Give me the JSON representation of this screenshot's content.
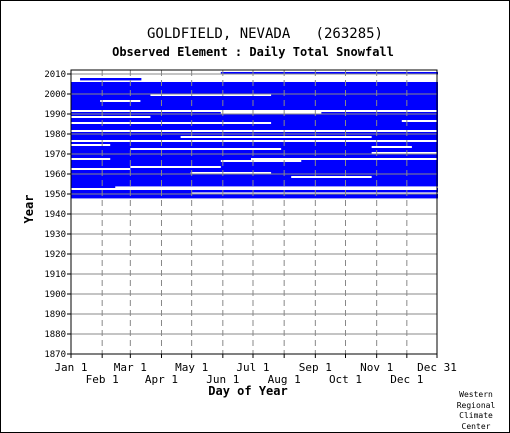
{
  "chart_data": {
    "type": "heatmap",
    "title": "GOLDFIELD, NEVADA   (263285)",
    "subtitle": "Observed Element : Daily Total Snowfall",
    "xlabel": "Day of Year",
    "ylabel": "Year",
    "xlim": [
      1,
      365
    ],
    "ylim": [
      1870,
      2012
    ],
    "x_ticks_top": [
      {
        "label": "Jan 1",
        "day": 1
      },
      {
        "label": "Mar 1",
        "day": 60
      },
      {
        "label": "May 1",
        "day": 121
      },
      {
        "label": "Jul 1",
        "day": 182
      },
      {
        "label": "Sep 1",
        "day": 244
      },
      {
        "label": "Nov 1",
        "day": 305
      },
      {
        "label": "Dec 31",
        "day": 365
      }
    ],
    "x_ticks_bottom": [
      {
        "label": "Feb 1",
        "day": 32
      },
      {
        "label": "Apr 1",
        "day": 91
      },
      {
        "label": "Jun 1",
        "day": 152
      },
      {
        "label": "Aug 1",
        "day": 213
      },
      {
        "label": "Oct 1",
        "day": 274
      },
      {
        "label": "Dec 1",
        "day": 335
      }
    ],
    "y_ticks": [
      1870,
      1880,
      1890,
      1900,
      1910,
      1920,
      1930,
      1940,
      1950,
      1960,
      1970,
      1980,
      1990,
      2000,
      2010
    ],
    "grid": true,
    "fill_color": "#0000ff",
    "observed_years": [
      1948,
      1949,
      1950,
      1951,
      1952,
      1954,
      1955,
      1956,
      1957,
      1958,
      1959,
      1960,
      1961,
      1962,
      1963,
      1964,
      1965,
      1966,
      1967,
      1968,
      1969,
      1970,
      1971,
      1972,
      1973,
      1974,
      1975,
      1976,
      1977,
      1978,
      1979,
      1980,
      1981,
      1982,
      1983,
      1984,
      1985,
      1986,
      1987,
      1988,
      1989,
      1990,
      1991,
      1992,
      1993,
      1994,
      1995,
      1996,
      1997,
      1998,
      1999,
      2000,
      2001,
      2002,
      2003,
      2004,
      2005,
      2007,
      2010
    ],
    "partial_years": [
      {
        "year": 1950,
        "days": [
          1,
          120
        ]
      },
      {
        "year": 1953,
        "days": [
          1,
          45
        ]
      },
      {
        "year": 2007,
        "days": [
          10,
          70
        ]
      },
      {
        "year": 2010,
        "days": [
          150,
          365
        ]
      }
    ],
    "missing_periods": [
      {
        "year": 1952,
        "days": [
          1,
          365
        ]
      },
      {
        "year": 1958,
        "days": [
          220,
          300
        ]
      },
      {
        "year": 1960,
        "days": [
          120,
          200
        ]
      },
      {
        "year": 1962,
        "days": [
          1,
          60
        ]
      },
      {
        "year": 1963,
        "days": [
          60,
          150
        ]
      },
      {
        "year": 1966,
        "days": [
          150,
          230
        ]
      },
      {
        "year": 1967,
        "days": [
          1,
          40
        ]
      },
      {
        "year": 1967,
        "days": [
          180,
          365
        ]
      },
      {
        "year": 1970,
        "days": [
          300,
          365
        ]
      },
      {
        "year": 1972,
        "days": [
          60,
          210
        ]
      },
      {
        "year": 1973,
        "days": [
          300,
          340
        ]
      },
      {
        "year": 1974,
        "days": [
          1,
          40
        ]
      },
      {
        "year": 1976,
        "days": [
          1,
          365
        ]
      },
      {
        "year": 1978,
        "days": [
          110,
          300
        ]
      },
      {
        "year": 1981,
        "days": [
          1,
          365
        ]
      },
      {
        "year": 1985,
        "days": [
          1,
          200
        ]
      },
      {
        "year": 1986,
        "days": [
          330,
          365
        ]
      },
      {
        "year": 1988,
        "days": [
          1,
          80
        ]
      },
      {
        "year": 1990,
        "days": [
          150,
          250
        ]
      },
      {
        "year": 1991,
        "days": [
          1,
          365
        ]
      },
      {
        "year": 1996,
        "days": [
          30,
          70
        ]
      },
      {
        "year": 1999,
        "days": [
          80,
          200
        ]
      }
    ],
    "credit": [
      "Western",
      "Regional",
      "Climate",
      "Center"
    ]
  }
}
